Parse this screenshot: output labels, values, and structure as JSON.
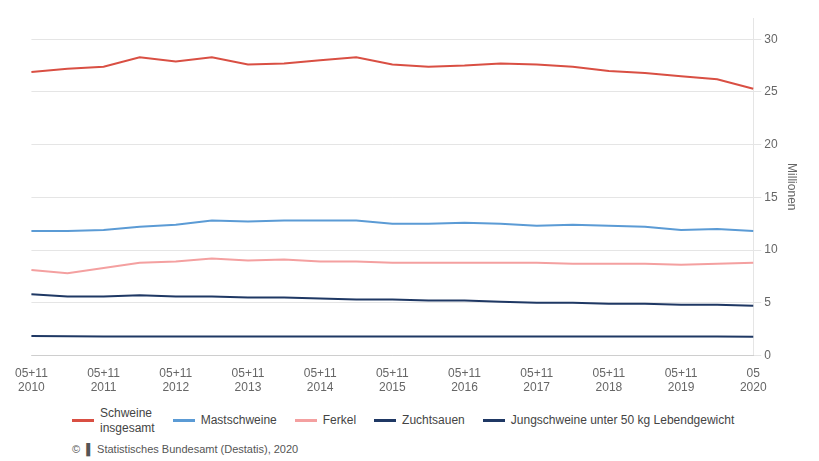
{
  "chart_data": {
    "type": "line",
    "ylabel": "Millionen",
    "categories": [
      "05+11\n2010",
      null,
      "05+11\n2011",
      null,
      "05+11\n2012",
      null,
      "05+11\n2013",
      null,
      "05+11\n2014",
      null,
      "05+11\n2015",
      null,
      "05+11\n2016",
      null,
      "05+11\n2017",
      null,
      "05+11\n2018",
      null,
      "05+11\n2019",
      null,
      "05\n2020"
    ],
    "series": [
      {
        "name": "Schweine\ninsgesamt",
        "color": "#d94f43",
        "values": [
          26.9,
          27.2,
          27.4,
          28.3,
          27.9,
          28.3,
          27.6,
          27.7,
          28.0,
          28.3,
          27.6,
          27.4,
          27.5,
          27.7,
          27.6,
          27.4,
          27.0,
          26.8,
          26.5,
          26.2,
          25.3
        ]
      },
      {
        "name": "Mastschweine",
        "color": "#5b9bd5",
        "values": [
          11.8,
          11.8,
          11.9,
          12.2,
          12.4,
          12.8,
          12.7,
          12.8,
          12.8,
          12.8,
          12.5,
          12.5,
          12.6,
          12.5,
          12.3,
          12.4,
          12.3,
          12.2,
          11.9,
          12.0,
          11.8
        ]
      },
      {
        "name": "Ferkel",
        "color": "#f4a0a0",
        "values": [
          8.1,
          7.8,
          8.3,
          8.8,
          8.9,
          9.2,
          9.0,
          9.1,
          8.9,
          8.9,
          8.8,
          8.8,
          8.8,
          8.8,
          8.8,
          8.7,
          8.7,
          8.7,
          8.6,
          8.7,
          8.8
        ]
      },
      {
        "name": "Zuchtsauen",
        "color": "#1f3864",
        "values": [
          5.8,
          5.6,
          5.6,
          5.7,
          5.6,
          5.6,
          5.5,
          5.5,
          5.4,
          5.3,
          5.3,
          5.2,
          5.2,
          5.1,
          5.0,
          5.0,
          4.9,
          4.9,
          4.8,
          4.8,
          4.7
        ]
      },
      {
        "name": "Jungschweine unter 50 kg Lebendgewicht",
        "color": "#1f3864",
        "values": [
          1.85,
          1.82,
          1.8,
          1.8,
          1.8,
          1.8,
          1.8,
          1.8,
          1.8,
          1.8,
          1.8,
          1.8,
          1.8,
          1.8,
          1.8,
          1.8,
          1.8,
          1.8,
          1.8,
          1.8,
          1.78
        ]
      }
    ],
    "ylim": [
      0,
      32
    ],
    "yticks": [
      0,
      5,
      10,
      15,
      20,
      25,
      30
    ],
    "grid": true,
    "legend": "bottom",
    "annotations": [
      "©  ▌ Statistisches Bundesamt (Destatis), 2020"
    ]
  }
}
